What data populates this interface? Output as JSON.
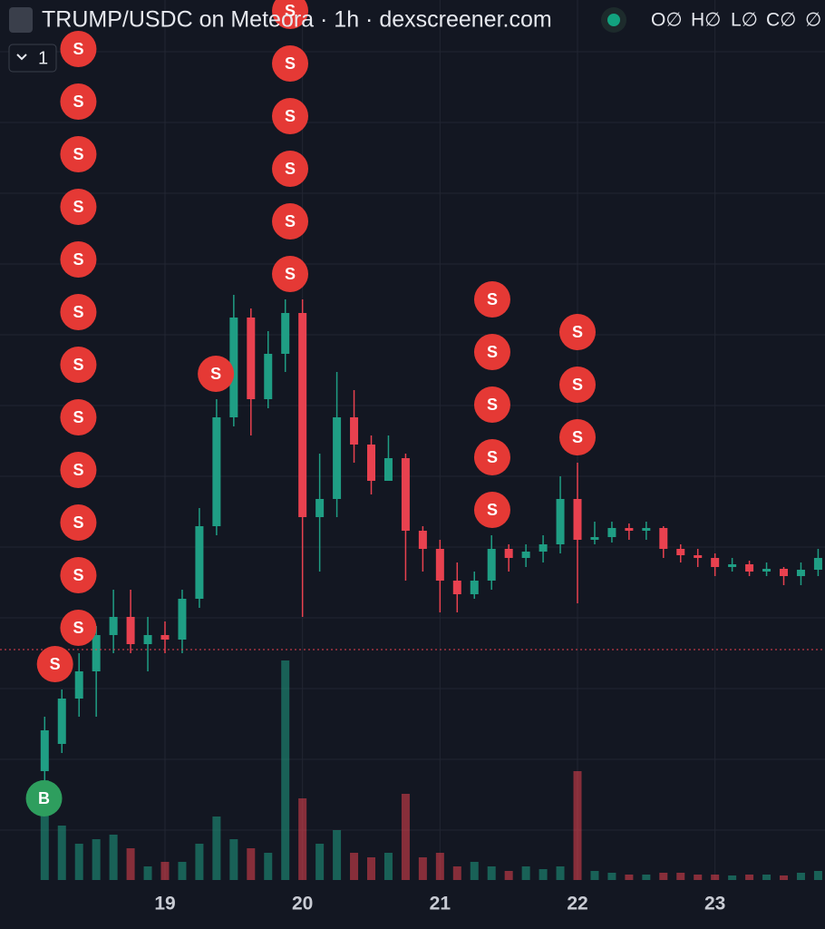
{
  "chart_data": {
    "type": "candlestick",
    "title": "TRUMP/USDC on Meteora · 1h · dexscreener.com",
    "ohlc_labels": [
      "O∅",
      "H∅",
      "L∅",
      "C∅",
      "∅"
    ],
    "selector": "1",
    "x": [
      18.125,
      18.25,
      18.375,
      18.5,
      18.625,
      18.75,
      18.875,
      19.0,
      19.125,
      19.25,
      19.375,
      19.5,
      19.625,
      19.75,
      19.875,
      20.0,
      20.125,
      20.25,
      20.375,
      20.5,
      20.625,
      20.75,
      20.875,
      21.0,
      21.125,
      21.25,
      21.375,
      21.5,
      21.625,
      21.75,
      21.875,
      22.0,
      22.125,
      22.25,
      22.375,
      22.5,
      22.625,
      22.75,
      22.875,
      23.0,
      23.125,
      23.25,
      23.375,
      23.5,
      23.625,
      23.75
    ],
    "open": [
      17.4,
      20.4,
      25.4,
      28.4,
      32.4,
      34.4,
      31.4,
      32.4,
      31.9,
      36.4,
      44.4,
      56.4,
      67.4,
      58.4,
      63.4,
      67.9,
      45.4,
      47.4,
      56.4,
      53.4,
      49.4,
      51.9,
      43.9,
      41.9,
      38.4,
      36.9,
      38.4,
      41.9,
      40.9,
      41.6,
      42.4,
      47.4,
      42.9,
      43.2,
      44.2,
      43.9,
      44.2,
      41.9,
      41.2,
      40.9,
      39.9,
      40.2,
      39.4,
      39.7,
      38.9,
      39.6
    ],
    "high": [
      23.4,
      26.4,
      30.4,
      33.4,
      37.4,
      37.4,
      34.4,
      33.9,
      37.4,
      46.4,
      58.4,
      69.9,
      68.4,
      65.9,
      69.4,
      69.4,
      52.4,
      61.4,
      59.4,
      54.4,
      54.4,
      52.4,
      44.4,
      42.9,
      40.4,
      39.4,
      43.4,
      42.4,
      42.4,
      43.4,
      49.9,
      51.4,
      44.9,
      44.9,
      44.7,
      44.9,
      44.4,
      42.4,
      41.9,
      41.4,
      40.9,
      40.6,
      40.4,
      39.9,
      40.4,
      41.9
    ],
    "low": [
      15.4,
      19.4,
      23.4,
      23.4,
      30.4,
      30.4,
      28.4,
      30.4,
      30.4,
      35.4,
      43.4,
      55.4,
      54.4,
      57.4,
      61.4,
      34.4,
      39.4,
      45.4,
      51.4,
      47.9,
      50.4,
      38.4,
      39.4,
      34.9,
      34.9,
      36.4,
      37.4,
      39.4,
      39.9,
      40.4,
      41.4,
      35.9,
      42.4,
      42.6,
      42.9,
      42.9,
      40.9,
      40.4,
      39.9,
      38.9,
      39.4,
      38.9,
      38.9,
      37.9,
      37.9,
      38.9
    ],
    "close": [
      21.9,
      25.4,
      28.4,
      32.4,
      34.4,
      31.4,
      32.4,
      31.9,
      36.4,
      44.4,
      56.4,
      67.4,
      58.4,
      63.4,
      67.9,
      45.4,
      47.4,
      56.4,
      53.4,
      49.4,
      51.9,
      43.9,
      41.9,
      38.4,
      36.9,
      38.4,
      41.9,
      40.9,
      41.6,
      42.4,
      47.4,
      42.9,
      43.2,
      44.2,
      43.9,
      44.2,
      41.9,
      41.2,
      40.9,
      39.9,
      40.2,
      39.4,
      39.7,
      38.9,
      39.6,
      40.9
    ],
    "volume": [
      110,
      60,
      40,
      45,
      50,
      35,
      15,
      20,
      20,
      40,
      70,
      45,
      35,
      30,
      242,
      90,
      40,
      55,
      30,
      25,
      30,
      95,
      25,
      30,
      15,
      20,
      15,
      10,
      15,
      12,
      15,
      120,
      10,
      8,
      6,
      6,
      8,
      8,
      6,
      6,
      5,
      6,
      6,
      5,
      8,
      10
    ],
    "xlim": [
      17.8,
      23.8
    ],
    "ylim": [
      0,
      102.4
    ],
    "volume_lim": [
      0,
      300
    ],
    "xticks": [
      19,
      20,
      21,
      22,
      23
    ],
    "up_color": "#1f9e84",
    "down_color": "#e8414f",
    "price_line": 30.8,
    "markers": [
      {
        "x": 18.12,
        "label": "B",
        "count": 1,
        "color": "#2e9e5e"
      },
      {
        "x": 18.2,
        "label": "S",
        "count": 1,
        "color": "#e53935"
      },
      {
        "x": 18.37,
        "label": "S",
        "count": 12,
        "color": "#e53935"
      },
      {
        "x": 19.37,
        "label": "S",
        "count": 1,
        "color": "#e53935"
      },
      {
        "x": 19.91,
        "label": "S",
        "count": 6,
        "color": "#e53935"
      },
      {
        "x": 21.38,
        "label": "S",
        "count": 5,
        "color": "#e53935"
      },
      {
        "x": 22.0,
        "label": "S",
        "count": 3,
        "color": "#e53935"
      }
    ]
  }
}
